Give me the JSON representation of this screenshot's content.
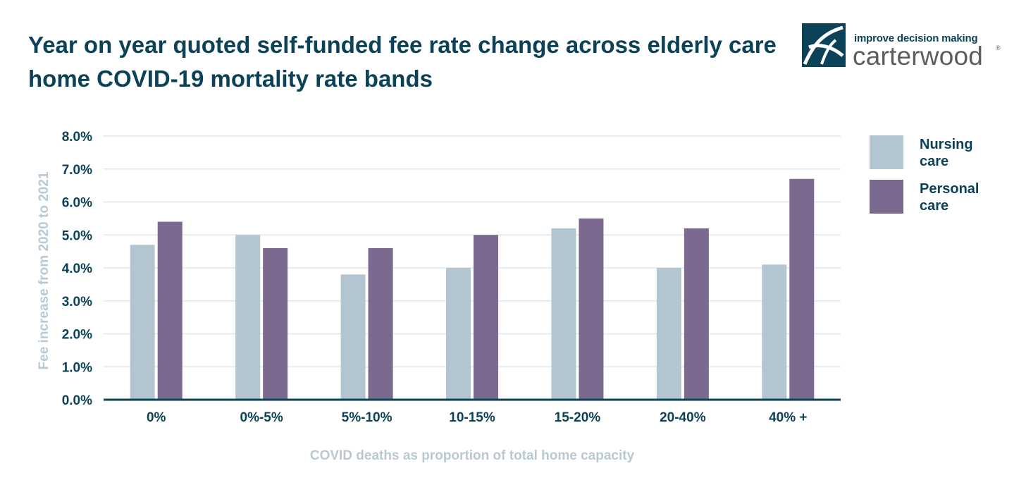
{
  "title": "Year on year quoted self-funded fee rate change across elderly care home COVID-19 mortality rate bands",
  "logo": {
    "icon": "carterwood-logo-mark",
    "tagline": "improve decision making",
    "wordmark": "carterwood",
    "registered": "®"
  },
  "colors": {
    "title": "#0b4257",
    "nursing": "#b3c5d1",
    "personal": "#7b6990",
    "axis_title": "#b9c9d3",
    "grid": "#dfe7ec",
    "baseline": "#0b4257"
  },
  "legend": [
    {
      "label": "Nursing care"
    },
    {
      "label": "Personal care"
    }
  ],
  "chart_data": {
    "type": "bar",
    "title": "Year on year quoted self-funded fee rate change across elderly care home COVID-19 mortality rate bands",
    "xlabel": "COVID deaths as proportion of total home capacity",
    "ylabel": "Fee increase from 2020 to 2021",
    "ylim": [
      0,
      8
    ],
    "yticks": [
      "0.0%",
      "1.0%",
      "2.0%",
      "3.0%",
      "4.0%",
      "5.0%",
      "6.0%",
      "7.0%",
      "8.0%"
    ],
    "grid": true,
    "legend_position": "right",
    "categories": [
      "0%",
      "0%-5%",
      "5%-10%",
      "10-15%",
      "15-20%",
      "20-40%",
      "40% +"
    ],
    "series": [
      {
        "name": "Nursing care",
        "values": [
          4.7,
          5.0,
          3.8,
          4.0,
          5.2,
          4.0,
          4.1
        ]
      },
      {
        "name": "Personal care",
        "values": [
          5.4,
          4.6,
          4.6,
          5.0,
          5.5,
          5.2,
          6.7
        ]
      }
    ]
  }
}
